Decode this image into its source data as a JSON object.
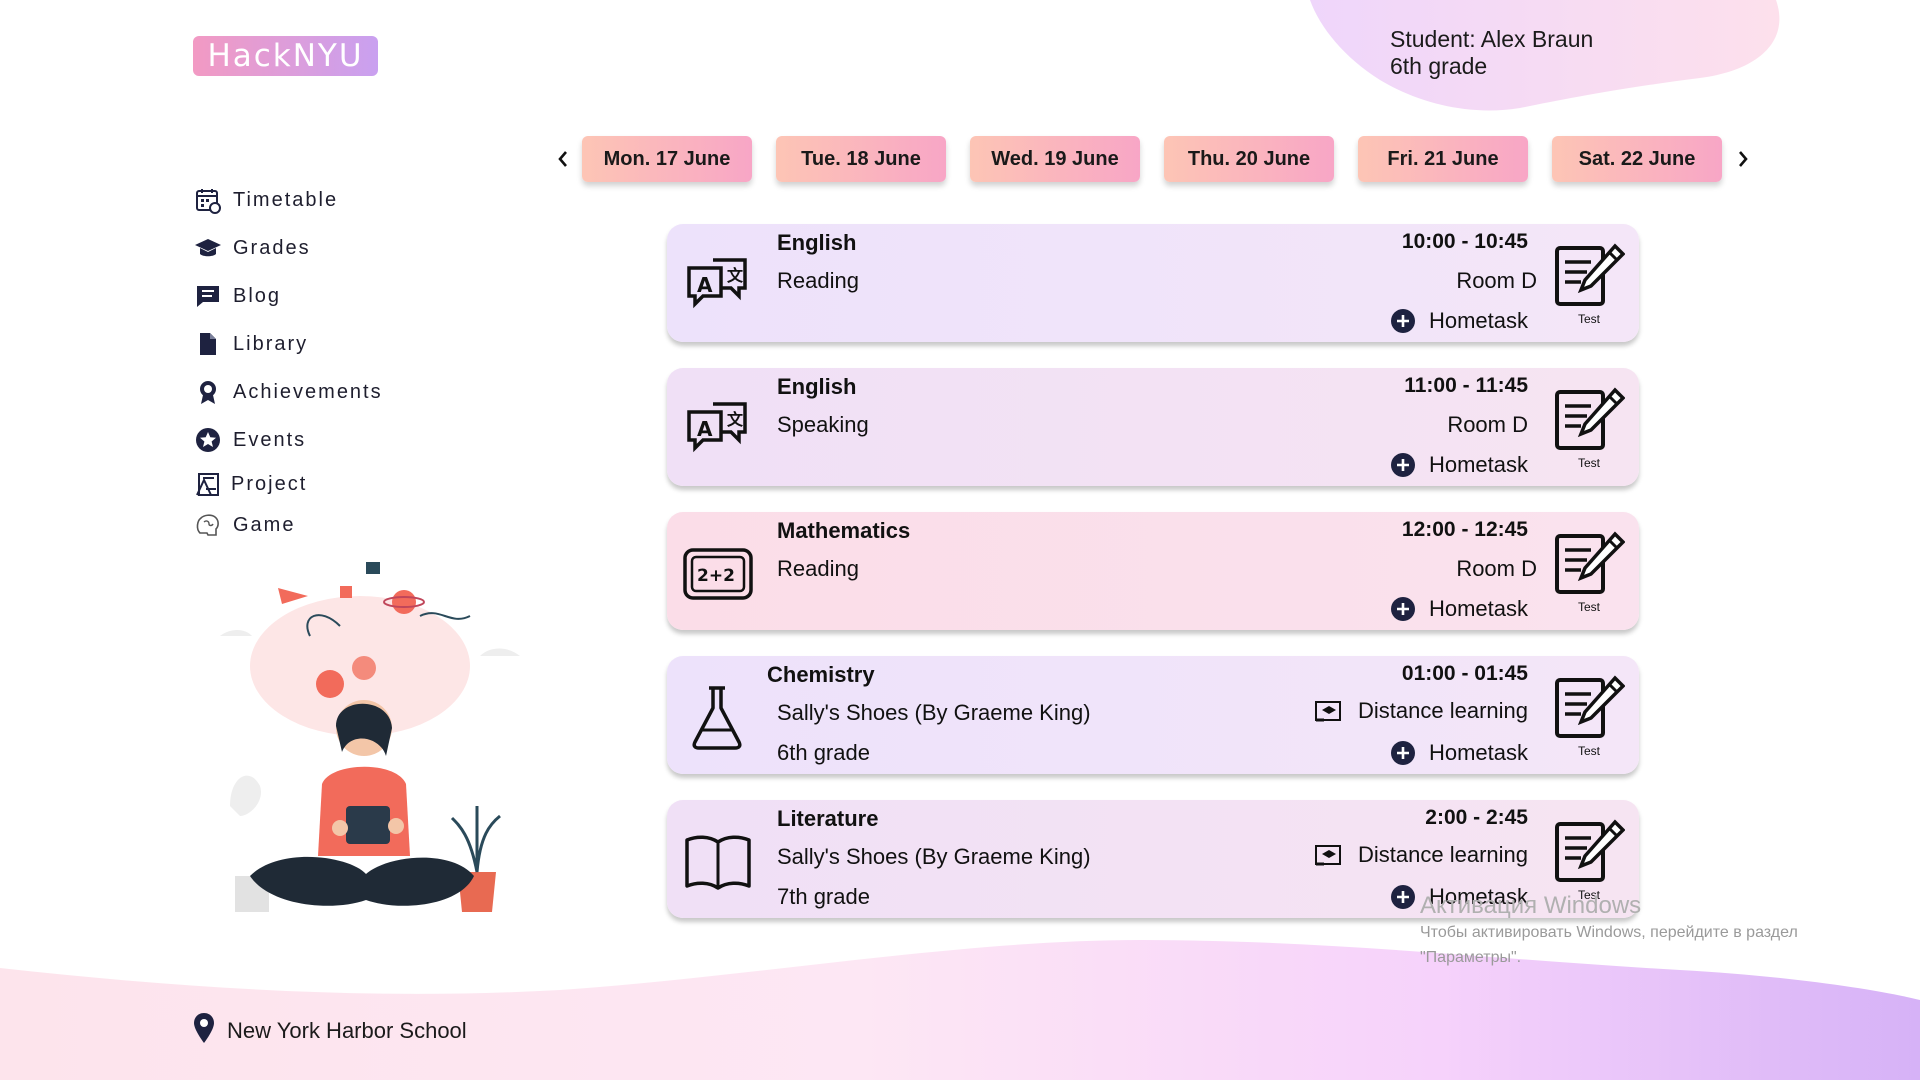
{
  "app": {
    "logo": "HackNYU"
  },
  "student": {
    "line1": "Student: Alex Braun",
    "line2": "6th grade"
  },
  "sidebar": {
    "items": [
      {
        "label": "Timetable",
        "icon": "calendar-icon"
      },
      {
        "label": "Grades",
        "icon": "graduation-cap-icon"
      },
      {
        "label": "Blog",
        "icon": "message-icon"
      },
      {
        "label": "Library",
        "icon": "document-icon"
      },
      {
        "label": "Achievements",
        "icon": "award-icon"
      },
      {
        "label": "Events",
        "icon": "star-icon"
      },
      {
        "label": "Project",
        "icon": "blueprint-icon"
      },
      {
        "label": "Game",
        "icon": "brain-icon"
      }
    ]
  },
  "days": [
    "Mon. 17 June",
    "Tue. 18 June",
    "Wed. 19 June",
    "Thu. 20 June",
    "Fri. 21 June",
    "Sat. 22 June"
  ],
  "lessons": [
    {
      "subject": "English",
      "topic": "Reading",
      "time": "10:00 - 10:45",
      "room": "Room D",
      "hometask": "Hometask",
      "test": "Test",
      "icon": "translate-icon"
    },
    {
      "subject": "English",
      "topic": "Speaking",
      "time": "11:00 - 11:45",
      "room": "Room D",
      "hometask": "Hometask",
      "test": "Test",
      "icon": "translate-icon"
    },
    {
      "subject": "Mathematics",
      "topic": "Reading",
      "time": "12:00 - 12:45",
      "room": "Room D",
      "hometask": "Hometask",
      "test": "Test",
      "icon": "math-board-icon"
    },
    {
      "subject": "Chemistry",
      "topic": "Sally's Shoes (By Graeme King)",
      "extra": "6th grade",
      "time": "01:00 - 01:45",
      "mode": "Distance learning",
      "hometask": "Hometask",
      "test": "Test",
      "icon": "flask-icon"
    },
    {
      "subject": "Literature",
      "topic": "Sally's Shoes (By Graeme King)",
      "extra": "7th grade",
      "time": "2:00 - 2:45",
      "mode": "Distance learning",
      "hometask": "Hometask",
      "test": "Test",
      "icon": "book-icon"
    }
  ],
  "footer": {
    "school": "New York Harbor School"
  },
  "watermark": {
    "line1": "Активация Windows",
    "line2": "Чтобы активировать Windows, перейдите в раздел",
    "line3": "\"Параметры\"."
  },
  "colors": {
    "card_lavender": "#efe3fb",
    "card_pink": "#fbe1ee",
    "day_pill_start": "#fdc5b5",
    "day_pill_end": "#f8a6c6"
  }
}
